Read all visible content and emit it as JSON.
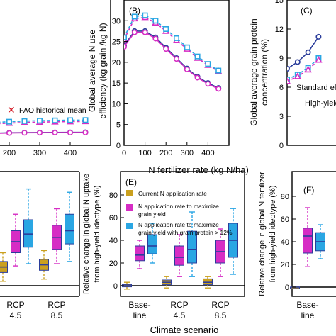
{
  "global_labels": {
    "x_label_top": "N fertilizer rate (kg N/ha)",
    "x_label_bottom": "Climate scenario"
  },
  "colors": {
    "blue": "#2b3d9b",
    "pink": "#d62dc4",
    "cyan": "#2aa6e3",
    "red": "#d41f2a",
    "gold": "#caa01e"
  },
  "chart_data": [
    {
      "panel": "A",
      "type": "line",
      "x": [
        0,
        50,
        100,
        150,
        200,
        250,
        300,
        350,
        400,
        450
      ],
      "xticks": [
        0,
        100,
        200,
        300,
        400
      ],
      "xtick_labels": [
        "0",
        "100",
        "200",
        "300",
        "400"
      ],
      "xlim": [
        0,
        500
      ],
      "series": [
        {
          "color": "pink",
          "style": "dashed",
          "marker": "triangle",
          "values": [
            4.1,
            4.7,
            5.0,
            5.2,
            5.4,
            5.55,
            5.65,
            5.72,
            5.77,
            5.8
          ]
        },
        {
          "color": "cyan",
          "style": "dashed",
          "marker": "square",
          "values": [
            4.3,
            4.9,
            5.3,
            5.55,
            5.75,
            5.9,
            6.0,
            6.07,
            6.12,
            6.15
          ]
        },
        {
          "color": "blue",
          "style": "solid",
          "marker": "circle",
          "values": [
            2.3,
            2.6,
            2.8,
            2.95,
            3.05,
            3.1,
            3.12,
            3.14,
            3.15,
            3.16
          ]
        },
        {
          "color": "pink",
          "style": "solid",
          "marker": "circle",
          "values": [
            2.25,
            2.55,
            2.75,
            2.9,
            3.0,
            3.05,
            3.07,
            3.09,
            3.1,
            3.11
          ]
        }
      ],
      "legend": [
        "FAO historical mean"
      ]
    },
    {
      "panel": "B",
      "type": "line",
      "title": "(B)",
      "ylabel_lines": [
        "Global average N use",
        "efficiency (kg grain /kg N)"
      ],
      "x": [
        0,
        50,
        100,
        150,
        200,
        250,
        300,
        350,
        400,
        450
      ],
      "xlim": [
        0,
        500
      ],
      "ylim": [
        0,
        35
      ],
      "xticks": [
        0,
        100,
        200,
        300,
        400
      ],
      "yticks": [
        0,
        5,
        10,
        15,
        20,
        25,
        30
      ],
      "xtick_labels": [
        "0",
        "100",
        "200",
        "300",
        "400"
      ],
      "ytick_labels": [
        "0",
        "5",
        "10",
        "15",
        "20",
        "25",
        "30"
      ],
      "series": [
        {
          "color": "pink",
          "style": "dashed",
          "marker": "triangle",
          "values": [
            25.5,
            30.5,
            30.8,
            29.5,
            27.5,
            25.3,
            23.2,
            21.0,
            19.3,
            17.8
          ]
        },
        {
          "color": "cyan",
          "style": "dashed",
          "marker": "square",
          "values": [
            26.0,
            31.0,
            31.3,
            30.0,
            28.0,
            25.8,
            23.6,
            21.4,
            19.6,
            18.0
          ]
        },
        {
          "color": "blue",
          "style": "solid",
          "marker": "circle",
          "values": [
            24.0,
            27.5,
            27.5,
            26.0,
            23.5,
            21.0,
            18.5,
            16.5,
            15.0,
            13.8
          ]
        },
        {
          "color": "pink",
          "style": "solid",
          "marker": "circle",
          "values": [
            23.7,
            27.2,
            27.2,
            25.7,
            23.2,
            20.8,
            18.3,
            16.3,
            14.8,
            13.6
          ]
        }
      ]
    },
    {
      "panel": "C",
      "type": "line",
      "title": "(C)",
      "ylabel_lines": [
        "Global average grain protein",
        "concentration (%)"
      ],
      "x": [
        0,
        50,
        100,
        150
      ],
      "xlim": [
        0,
        500
      ],
      "ylim": [
        0,
        15
      ],
      "yticks": [
        0,
        3,
        6,
        9,
        12,
        15
      ],
      "ytick_labels": [
        "0",
        "3",
        "6",
        "9",
        "12",
        "15"
      ],
      "series": [
        {
          "color": "blue",
          "style": "solid",
          "marker": "circle",
          "values": [
            7.9,
            8.6,
            9.6,
            11.2
          ]
        },
        {
          "color": "cyan",
          "style": "dashed",
          "marker": "square",
          "values": [
            6.8,
            7.3,
            8.0,
            9.0
          ]
        },
        {
          "color": "pink",
          "style": "dashed",
          "marker": "triangle",
          "values": [
            6.6,
            7.1,
            7.8,
            8.8
          ]
        }
      ],
      "legend": [
        "Standard eli",
        "High-yield"
      ]
    },
    {
      "panel": "D",
      "type": "box",
      "categories": [
        "RCP\n4.5",
        "RCP\n8.5"
      ],
      "ylim": [
        -10,
        90
      ],
      "groups": [
        {
          "label_lines": [
            "RCP",
            "4.5"
          ],
          "boxes": [
            {
              "color": "gold",
              "whislo": 4,
              "q1": 12,
              "med": 17,
              "q3": 22,
              "whishi": 30
            },
            {
              "color": "pink",
              "whislo": 18,
              "q1": 30,
              "med": 40,
              "q3": 50,
              "whishi": 65
            },
            {
              "color": "cyan",
              "whislo": 20,
              "q1": 35,
              "med": 47,
              "q3": 60,
              "whishi": 88
            }
          ]
        },
        {
          "label_lines": [
            "RCP",
            "8.5"
          ],
          "boxes": [
            {
              "color": "gold",
              "whislo": 6,
              "q1": 14,
              "med": 19,
              "q3": 24,
              "whishi": 32
            },
            {
              "color": "pink",
              "whislo": 20,
              "q1": 33,
              "med": 44,
              "q3": 55,
              "whishi": 70
            },
            {
              "color": "cyan",
              "whislo": 22,
              "q1": 38,
              "med": 50,
              "q3": 65,
              "whishi": 85
            }
          ]
        }
      ]
    },
    {
      "panel": "E",
      "type": "box",
      "title": "(E)",
      "ylabel_lines": [
        "Relative change in global N uptake",
        "from high-yield ideotype (%)"
      ],
      "ylim": [
        -10,
        100
      ],
      "yticks": [
        0,
        20,
        40,
        60,
        80
      ],
      "ytick_labels": [
        "0",
        "20",
        "40",
        "60",
        "80"
      ],
      "legend": [
        {
          "color": "gold",
          "lines": [
            "Current N application rate"
          ]
        },
        {
          "color": "pink",
          "lines": [
            "N application rate to maximize",
            "grain yield"
          ]
        },
        {
          "color": "cyan",
          "lines": [
            "N application rate to maximize",
            "grain yield with grain protein > 12%"
          ]
        }
      ],
      "groups": [
        {
          "label_lines": [
            "Base-",
            "line"
          ],
          "boxes": [
            {
              "color": "gold",
              "whislo": -3,
              "q1": -1,
              "med": 0,
              "q3": 1,
              "whishi": 3
            },
            {
              "color": "pink",
              "whislo": 15,
              "q1": 22,
              "med": 27,
              "q3": 35,
              "whishi": 40
            },
            {
              "color": "cyan",
              "whislo": 20,
              "q1": 28,
              "med": 35,
              "q3": 45,
              "whishi": 55
            }
          ]
        },
        {
          "label_lines": [
            "RCP",
            "4.5"
          ],
          "boxes": [
            {
              "color": "gold",
              "whislo": -2,
              "q1": 1,
              "med": 3,
              "q3": 5,
              "whishi": 8
            },
            {
              "color": "pink",
              "whislo": 8,
              "q1": 18,
              "med": 25,
              "q3": 35,
              "whishi": 45
            },
            {
              "color": "cyan",
              "whislo": 8,
              "q1": 20,
              "med": 32,
              "q3": 48,
              "whishi": 65
            }
          ]
        },
        {
          "label_lines": [
            "RCP",
            "8.5"
          ],
          "boxes": [
            {
              "color": "gold",
              "whislo": -2,
              "q1": 1,
              "med": 3,
              "q3": 6,
              "whishi": 8
            },
            {
              "color": "pink",
              "whislo": 8,
              "q1": 20,
              "med": 30,
              "q3": 40,
              "whishi": 50
            },
            {
              "color": "cyan",
              "whislo": 10,
              "q1": 25,
              "med": 40,
              "q3": 55,
              "whishi": 68
            }
          ]
        }
      ]
    },
    {
      "panel": "F",
      "type": "box",
      "title": "(F)",
      "ylabel_lines": [
        "Relative change in global N fertilizer",
        "from high-yield ideotype (%)"
      ],
      "ylim": [
        -10,
        100
      ],
      "yticks": [
        0,
        20,
        40,
        60,
        80
      ],
      "ytick_labels": [
        "0",
        "20",
        "40",
        "60",
        "80"
      ],
      "groups": [
        {
          "label_lines": [
            "Base-",
            "line"
          ],
          "boxes": [
            {
              "color": "gold",
              "whislo": 0,
              "q1": 0,
              "med": 0,
              "q3": 0,
              "whishi": 0
            },
            {
              "color": "pink",
              "whislo": 18,
              "q1": 30,
              "med": 45,
              "q3": 52,
              "whishi": 70
            },
            {
              "color": "cyan",
              "whislo": 25,
              "q1": 32,
              "med": 40,
              "q3": 48,
              "whishi": 55
            }
          ]
        }
      ]
    }
  ]
}
